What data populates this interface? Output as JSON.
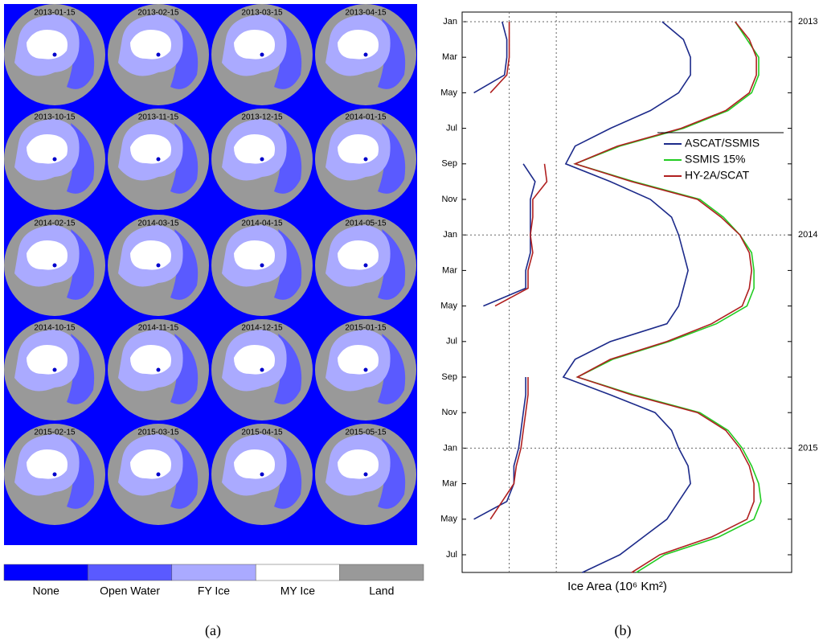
{
  "figure": {
    "panel_a": {
      "maps": [
        "2013-01-15",
        "2013-02-15",
        "2013-03-15",
        "2013-04-15",
        "2013-10-15",
        "2013-11-15",
        "2013-12-15",
        "2014-01-15",
        "2014-02-15",
        "2014-03-15",
        "2014-04-15",
        "2014-05-15",
        "2014-10-15",
        "2014-11-15",
        "2014-12-15",
        "2015-01-15",
        "2015-02-15",
        "2015-03-15",
        "2015-04-15",
        "2015-05-15"
      ],
      "legend": [
        {
          "label": "None",
          "color": "#0000ff"
        },
        {
          "label": "Open Water",
          "color": "#5a5aff"
        },
        {
          "label": "FY Ice",
          "color": "#aaaaff"
        },
        {
          "label": "MY Ice",
          "color": "#ffffff"
        },
        {
          "label": "Land",
          "color": "#999999"
        }
      ],
      "caption": "(a)"
    },
    "panel_b": {
      "caption": "(b)"
    }
  },
  "chart_data": {
    "type": "line",
    "x_label": "Ice Area (10⁶ Km²)",
    "categories": [
      "Jan",
      null,
      "Mar",
      null,
      "May",
      null,
      "Jul",
      null,
      "Sep",
      null,
      "Nov",
      null,
      "Jan",
      null,
      "Mar",
      null,
      "May",
      null,
      "Jul",
      null,
      "Sep",
      null,
      "Nov",
      null,
      "Jan",
      null,
      "Mar",
      null,
      "May",
      null,
      "Jul",
      null
    ],
    "year_labels": [
      "2013",
      null,
      null,
      null,
      null,
      null,
      null,
      null,
      null,
      null,
      null,
      null,
      "2014",
      null,
      null,
      null,
      null,
      null,
      null,
      null,
      null,
      null,
      null,
      null,
      "2015",
      null,
      null,
      null,
      null,
      null,
      null,
      null
    ],
    "xlim": [
      0,
      14
    ],
    "xticks": [
      2,
      4
    ],
    "grid": true,
    "legend": "upper right",
    "series": [
      {
        "name": "ASCAT/SSMIS",
        "color": "#1c2a8a",
        "values": [
          8.5,
          9.4,
          9.7,
          9.7,
          9.2,
          8.0,
          6.3,
          4.8,
          4.4,
          6.3,
          8.0,
          8.9,
          9.2,
          9.4,
          9.6,
          9.4,
          9.2,
          8.7,
          6.3,
          4.8,
          4.3,
          6.3,
          8.2,
          8.9,
          9.2,
          9.6,
          9.7,
          9.2,
          8.7,
          7.7,
          6.7,
          5.1
        ]
      },
      {
        "name": "SSMIS 15%",
        "color": "#22cc22",
        "values": [
          11.6,
          12.1,
          12.6,
          12.6,
          12.3,
          11.3,
          9.4,
          6.7,
          4.8,
          7.3,
          10.1,
          11.1,
          11.8,
          12.3,
          12.4,
          12.4,
          12.1,
          10.8,
          8.8,
          6.4,
          4.9,
          7.3,
          10.1,
          11.3,
          11.9,
          12.3,
          12.6,
          12.7,
          12.4,
          10.9,
          8.6,
          7.4
        ]
      },
      {
        "name": "HY-2A/SCAT",
        "color": "#b02020",
        "values": [
          11.6,
          12.2,
          12.5,
          12.5,
          12.2,
          11.2,
          9.3,
          6.6,
          4.8,
          7.2,
          10.0,
          11.0,
          11.8,
          12.2,
          12.3,
          12.2,
          11.9,
          10.6,
          8.7,
          6.3,
          4.9,
          7.2,
          10.0,
          11.2,
          11.8,
          12.2,
          12.4,
          12.4,
          12.1,
          10.6,
          8.4,
          7.2
        ]
      },
      {
        "color": "#1c2a8a",
        "values": [
          1.7,
          1.9,
          1.9,
          1.8,
          0.5,
          null,
          null,
          null,
          2.6,
          3.1,
          2.9,
          2.9,
          2.9,
          2.9,
          2.7,
          2.7,
          0.9,
          null,
          null,
          null,
          2.7,
          2.7,
          2.6,
          2.5,
          2.4,
          2.2,
          2.2,
          1.9,
          0.5,
          null,
          null,
          null
        ]
      },
      {
        "color": "#b02020",
        "values": [
          2.0,
          2.0,
          2.0,
          1.9,
          1.2,
          null,
          null,
          null,
          3.5,
          3.6,
          3.0,
          3.0,
          2.9,
          3.0,
          2.8,
          2.8,
          1.4,
          null,
          null,
          null,
          2.8,
          2.8,
          2.7,
          2.6,
          2.5,
          2.3,
          2.2,
          1.7,
          1.2,
          null,
          null,
          null
        ]
      }
    ]
  }
}
